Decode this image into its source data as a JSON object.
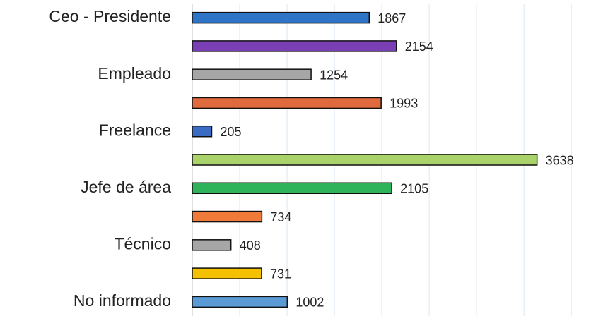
{
  "chart_data": {
    "type": "barh",
    "categories": [
      "Ceo - Presidente",
      null,
      "Empleado",
      null,
      "Freelance",
      null,
      "Jefe de área",
      null,
      "Técnico",
      null,
      "No informado"
    ],
    "values": [
      1867,
      2154,
      1254,
      1993,
      205,
      3638,
      2105,
      734,
      408,
      731,
      1002
    ],
    "colors": [
      "#2e75c8",
      "#7b3fb5",
      "#a6a6a6",
      "#e0693e",
      "#3a6cc4",
      "#a9d26a",
      "#2fb35a",
      "#ef7a3a",
      "#a6a6a6",
      "#f5c000",
      "#5b9bd5"
    ],
    "xlim": [
      0,
      4200
    ],
    "xticks": [
      0,
      500,
      1000,
      1500,
      2000,
      2500,
      3000,
      3500,
      4000
    ],
    "grid": true
  }
}
